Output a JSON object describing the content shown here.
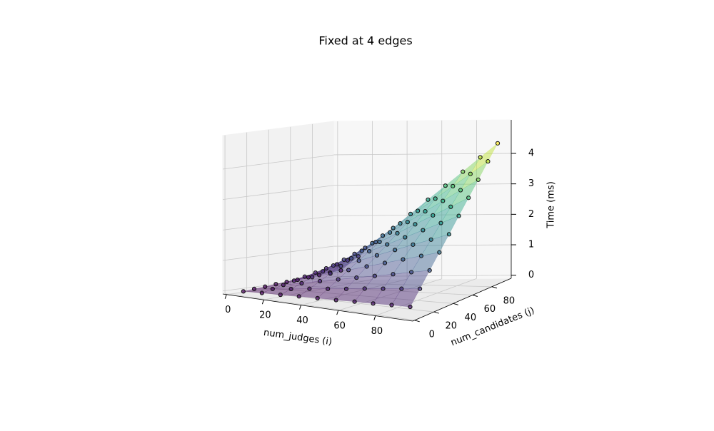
{
  "chart_data": {
    "type": "surface3d",
    "title": "Fixed at 4 edges",
    "xlabel": "num_judges (i)",
    "ylabel": "num_candidates (j)",
    "zlabel": "Time (ms)",
    "x": [
      5,
      15,
      25,
      35,
      45,
      55,
      65,
      75,
      85,
      95
    ],
    "y": [
      5,
      15,
      25,
      35,
      45,
      55,
      65,
      75,
      85,
      95
    ],
    "z": [
      [
        0.01,
        0.04,
        0.06,
        0.09,
        0.11,
        0.13,
        0.16,
        0.18,
        0.21,
        0.23
      ],
      [
        0.04,
        0.11,
        0.18,
        0.26,
        0.33,
        0.4,
        0.48,
        0.55,
        0.62,
        0.69
      ],
      [
        0.06,
        0.18,
        0.3,
        0.43,
        0.55,
        0.67,
        0.79,
        0.91,
        1.04,
        1.16
      ],
      [
        0.09,
        0.26,
        0.43,
        0.6,
        0.77,
        0.94,
        1.11,
        1.28,
        1.45,
        1.62
      ],
      [
        0.11,
        0.33,
        0.55,
        0.77,
        0.99,
        1.21,
        1.43,
        1.65,
        1.86,
        2.08
      ],
      [
        0.13,
        0.4,
        0.67,
        0.94,
        1.21,
        1.47,
        1.74,
        2.01,
        2.28,
        2.55
      ],
      [
        0.16,
        0.48,
        0.79,
        1.11,
        1.43,
        1.74,
        2.06,
        2.38,
        2.69,
        3.01
      ],
      [
        0.18,
        0.55,
        0.91,
        1.28,
        1.65,
        2.01,
        2.38,
        2.74,
        3.11,
        3.47
      ],
      [
        0.21,
        0.62,
        1.04,
        1.45,
        1.86,
        2.28,
        2.69,
        3.11,
        3.52,
        3.94
      ],
      [
        0.23,
        0.69,
        1.16,
        1.62,
        2.08,
        2.55,
        3.01,
        3.47,
        3.94,
        4.4
      ]
    ],
    "xlim": [
      -2,
      100
    ],
    "ylim": [
      -2,
      100
    ],
    "zlim": [
      -0.1,
      5.1
    ],
    "xticks": [
      0,
      20,
      40,
      60,
      80
    ],
    "yticks": [
      0,
      20,
      40,
      60,
      80
    ],
    "zticks": [
      0,
      1,
      2,
      3,
      4
    ],
    "colormap": "viridis",
    "grid": true
  }
}
